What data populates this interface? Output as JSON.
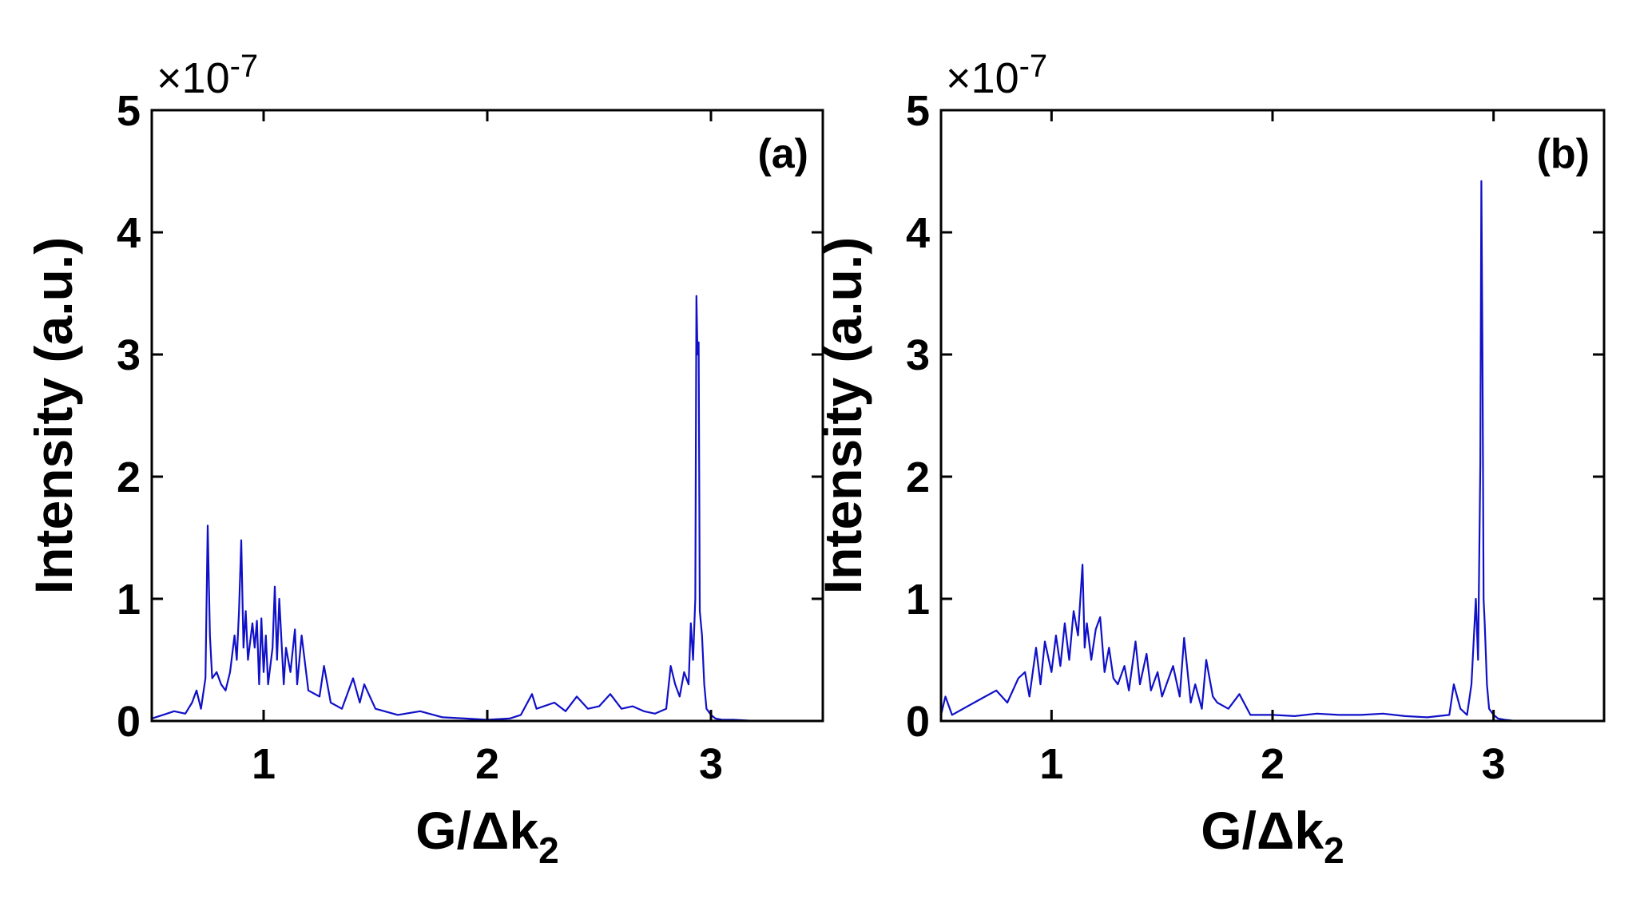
{
  "chart_data": [
    {
      "type": "line",
      "panel_label": "(a)",
      "xlabel": {
        "main": "G/Δk",
        "sub": "2"
      },
      "ylabel": "Intensity (a.u.)",
      "y_exponent": {
        "base": "×10",
        "power": "-7"
      },
      "xlim": [
        0.5,
        3.5
      ],
      "ylim": [
        0,
        5
      ],
      "xticks": [
        1,
        2,
        3
      ],
      "yticks": [
        0,
        1,
        2,
        3,
        4,
        5
      ],
      "grid": false,
      "line_color": "#1010c8",
      "series": [
        {
          "x": [
            0.5,
            0.55,
            0.6,
            0.65,
            0.68,
            0.7,
            0.72,
            0.74,
            0.75,
            0.76,
            0.77,
            0.79,
            0.81,
            0.83,
            0.85,
            0.87,
            0.88,
            0.89,
            0.9,
            0.91,
            0.92,
            0.93,
            0.95,
            0.96,
            0.97,
            0.98,
            0.99,
            1.0,
            1.01,
            1.02,
            1.04,
            1.05,
            1.06,
            1.07,
            1.09,
            1.1,
            1.12,
            1.14,
            1.15,
            1.17,
            1.2,
            1.25,
            1.27,
            1.3,
            1.35,
            1.4,
            1.43,
            1.45,
            1.5,
            1.6,
            1.7,
            1.8,
            1.9,
            2.0,
            2.1,
            2.15,
            2.2,
            2.22,
            2.3,
            2.35,
            2.4,
            2.45,
            2.5,
            2.55,
            2.6,
            2.65,
            2.7,
            2.75,
            2.8,
            2.82,
            2.84,
            2.86,
            2.88,
            2.9,
            2.91,
            2.92,
            2.93,
            2.935,
            2.94,
            2.945,
            2.95,
            2.96,
            2.97,
            2.98,
            3.0,
            3.02,
            3.05,
            3.1,
            3.2,
            3.3,
            3.4,
            3.5
          ],
          "y": [
            0.02,
            0.05,
            0.08,
            0.06,
            0.15,
            0.25,
            0.1,
            0.35,
            1.6,
            0.7,
            0.35,
            0.4,
            0.3,
            0.25,
            0.4,
            0.7,
            0.5,
            0.9,
            1.48,
            0.6,
            0.9,
            0.5,
            0.8,
            0.6,
            0.82,
            0.3,
            0.84,
            0.4,
            0.7,
            0.3,
            0.6,
            1.1,
            0.5,
            1.0,
            0.3,
            0.6,
            0.4,
            0.75,
            0.3,
            0.7,
            0.25,
            0.2,
            0.45,
            0.15,
            0.1,
            0.35,
            0.15,
            0.3,
            0.1,
            0.05,
            0.08,
            0.03,
            0.02,
            0.01,
            0.02,
            0.05,
            0.22,
            0.1,
            0.15,
            0.08,
            0.2,
            0.1,
            0.12,
            0.22,
            0.1,
            0.12,
            0.08,
            0.06,
            0.1,
            0.45,
            0.3,
            0.2,
            0.4,
            0.3,
            0.8,
            0.5,
            1.0,
            3.48,
            3.0,
            3.1,
            0.9,
            0.7,
            0.3,
            0.1,
            0.05,
            0.02,
            0.01,
            0.01,
            0.0,
            0.0,
            0.0,
            0.0
          ]
        }
      ]
    },
    {
      "type": "line",
      "panel_label": "(b)",
      "xlabel": {
        "main": "G/Δk",
        "sub": "2"
      },
      "ylabel": "Intensity (a.u.)",
      "y_exponent": {
        "base": "×10",
        "power": "-7"
      },
      "xlim": [
        0.5,
        3.5
      ],
      "ylim": [
        0,
        5
      ],
      "xticks": [
        1,
        2,
        3
      ],
      "yticks": [
        0,
        1,
        2,
        3,
        4,
        5
      ],
      "grid": false,
      "line_color": "#1010c8",
      "series": [
        {
          "x": [
            0.5,
            0.52,
            0.55,
            0.6,
            0.65,
            0.7,
            0.75,
            0.8,
            0.85,
            0.88,
            0.9,
            0.93,
            0.95,
            0.97,
            1.0,
            1.02,
            1.04,
            1.06,
            1.08,
            1.1,
            1.12,
            1.14,
            1.15,
            1.16,
            1.18,
            1.2,
            1.22,
            1.24,
            1.26,
            1.28,
            1.3,
            1.33,
            1.35,
            1.38,
            1.4,
            1.43,
            1.45,
            1.48,
            1.5,
            1.55,
            1.58,
            1.6,
            1.63,
            1.65,
            1.68,
            1.7,
            1.73,
            1.75,
            1.8,
            1.85,
            1.9,
            2.0,
            2.1,
            2.2,
            2.3,
            2.4,
            2.5,
            2.6,
            2.7,
            2.8,
            2.82,
            2.85,
            2.88,
            2.9,
            2.92,
            2.93,
            2.94,
            2.945,
            2.95,
            2.955,
            2.96,
            2.97,
            2.98,
            3.0,
            3.02,
            3.05,
            3.1,
            3.2,
            3.3,
            3.4,
            3.5
          ],
          "y": [
            0.05,
            0.2,
            0.05,
            0.1,
            0.15,
            0.2,
            0.25,
            0.15,
            0.35,
            0.4,
            0.2,
            0.6,
            0.3,
            0.65,
            0.4,
            0.7,
            0.45,
            0.8,
            0.5,
            0.9,
            0.7,
            1.28,
            0.6,
            0.8,
            0.5,
            0.75,
            0.85,
            0.4,
            0.6,
            0.35,
            0.3,
            0.45,
            0.25,
            0.65,
            0.3,
            0.55,
            0.25,
            0.4,
            0.2,
            0.45,
            0.2,
            0.68,
            0.15,
            0.3,
            0.1,
            0.5,
            0.2,
            0.15,
            0.1,
            0.22,
            0.05,
            0.05,
            0.04,
            0.06,
            0.05,
            0.05,
            0.06,
            0.04,
            0.03,
            0.05,
            0.3,
            0.1,
            0.05,
            0.3,
            1.0,
            0.5,
            2.1,
            4.42,
            3.0,
            1.0,
            0.8,
            0.3,
            0.1,
            0.05,
            0.02,
            0.01,
            0.0,
            0.0,
            0.0,
            0.0,
            0.0
          ]
        }
      ]
    }
  ]
}
